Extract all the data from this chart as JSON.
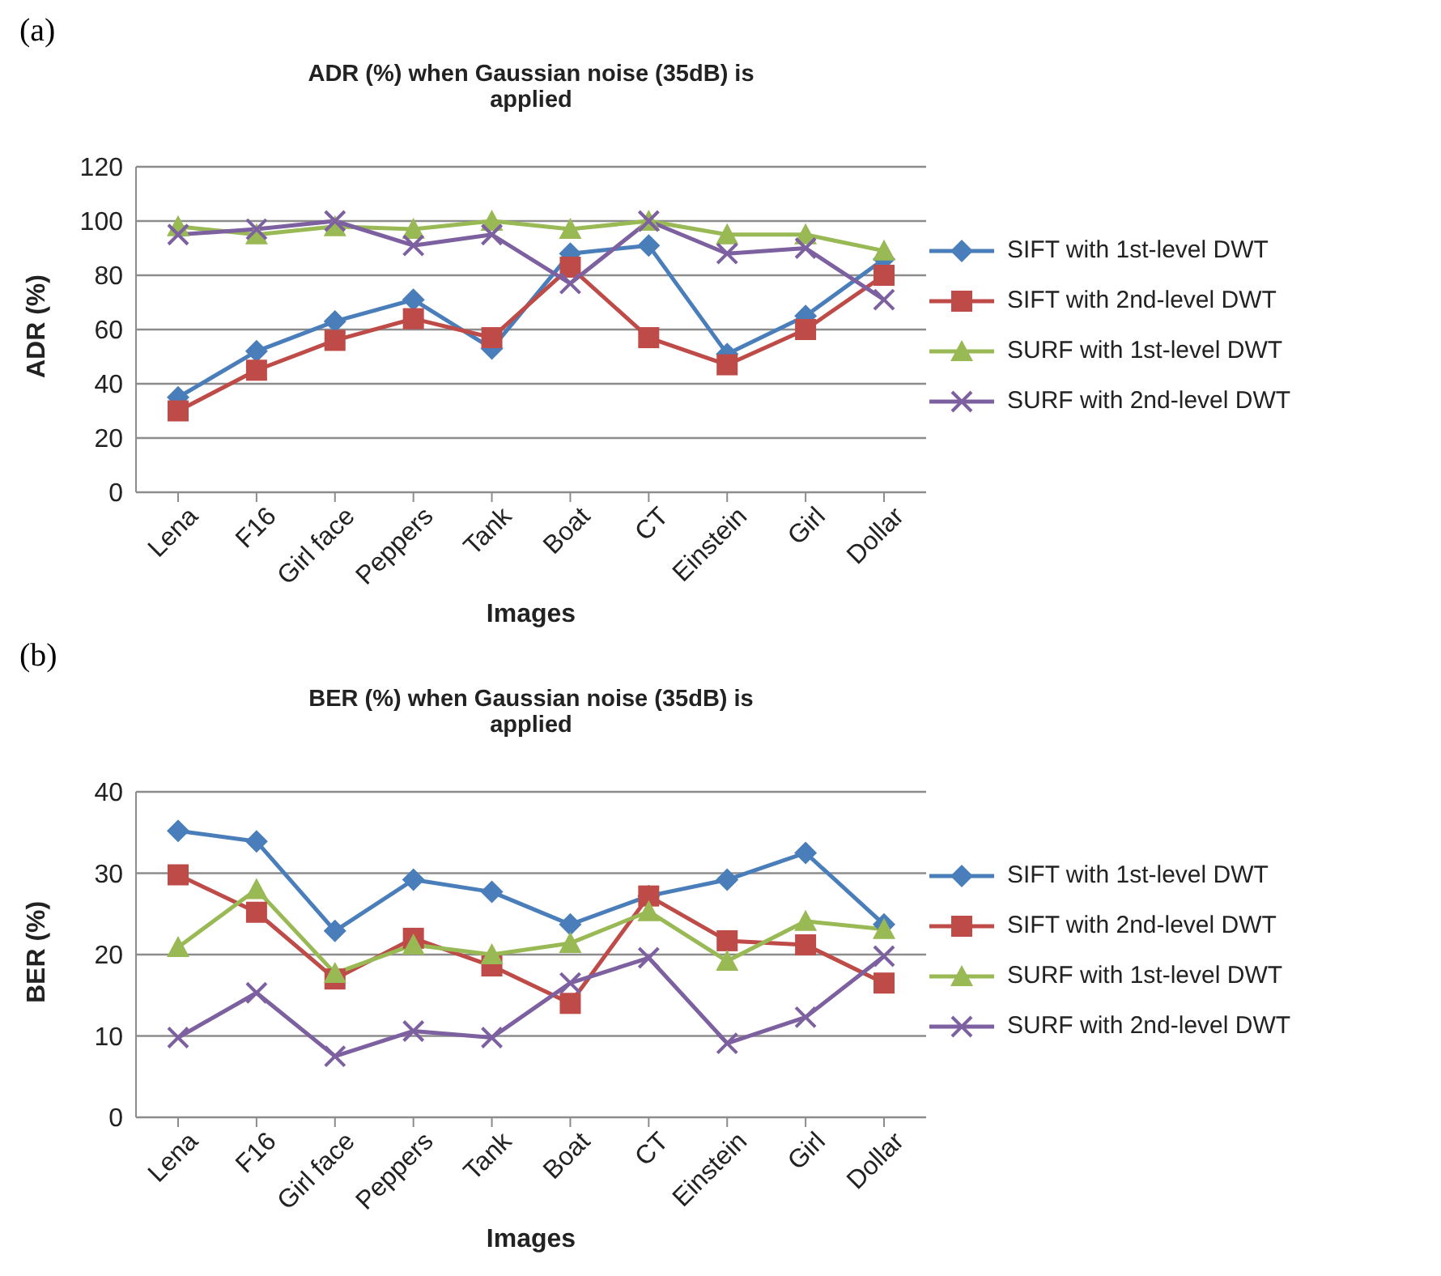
{
  "chart_data": [
    {
      "type": "line",
      "title": "ADR (%) when Gaussian noise (35dB) is applied",
      "xlabel": "Images",
      "ylabel": "ADR (%)",
      "annotations": [
        "(a)"
      ],
      "categories": [
        "Lena",
        "F16",
        "Girl face",
        "Peppers",
        "Tank",
        "Boat",
        "CT",
        "Einstein",
        "Girl",
        "Dollar"
      ],
      "ylim": [
        0,
        120
      ],
      "yticks": [
        0,
        20,
        40,
        60,
        80,
        100,
        120
      ],
      "grid": "y",
      "legend": "right",
      "series": [
        {
          "name": "SIFT with 1st-level DWT",
          "color": "#4a7ebb",
          "marker": "diamond",
          "values": [
            35,
            52,
            63,
            71,
            53,
            88,
            91,
            51,
            65,
            86
          ]
        },
        {
          "name": "SIFT with 2nd-level DWT",
          "color": "#be4b48",
          "marker": "square",
          "values": [
            30,
            45,
            56,
            64,
            57,
            83,
            57,
            47,
            60,
            80
          ]
        },
        {
          "name": "SURF with 1st-level DWT",
          "color": "#98b954",
          "marker": "triangle",
          "values": [
            98,
            95,
            98,
            97,
            100,
            97,
            100,
            95,
            95,
            89
          ]
        },
        {
          "name": "SURF with 2nd-level DWT",
          "color": "#7d60a0",
          "marker": "cross",
          "values": [
            95,
            97,
            100,
            91,
            95,
            77,
            100,
            88,
            90,
            71
          ]
        }
      ]
    },
    {
      "type": "line",
      "title": "BER (%) when Gaussian noise (35dB) is applied",
      "xlabel": "Images",
      "ylabel": "BER (%)",
      "annotations": [
        "(b)"
      ],
      "categories": [
        "Lena",
        "F16",
        "Girl face",
        "Peppers",
        "Tank",
        "Boat",
        "CT",
        "Einstein",
        "Girl",
        "Dollar"
      ],
      "ylim": [
        0,
        40
      ],
      "yticks": [
        0,
        10,
        20,
        30,
        40
      ],
      "grid": "y",
      "legend": "right",
      "series": [
        {
          "name": "SIFT with 1st-level DWT",
          "color": "#4a7ebb",
          "marker": "diamond",
          "values": [
            35.2,
            33.9,
            22.9,
            29.2,
            27.7,
            23.7,
            27.2,
            29.2,
            32.5,
            23.7
          ]
        },
        {
          "name": "SIFT with 2nd-level DWT",
          "color": "#be4b48",
          "marker": "square",
          "values": [
            29.8,
            25.2,
            17.0,
            22.0,
            18.6,
            14.0,
            27.2,
            21.7,
            21.2,
            16.5
          ]
        },
        {
          "name": "SURF with 1st-level DWT",
          "color": "#98b954",
          "marker": "triangle",
          "values": [
            20.9,
            28.0,
            17.7,
            21.2,
            20.0,
            21.4,
            25.3,
            19.2,
            24.1,
            23.1
          ]
        },
        {
          "name": "SURF with 2nd-level DWT",
          "color": "#7d60a0",
          "marker": "cross",
          "values": [
            9.8,
            15.3,
            7.5,
            10.6,
            9.8,
            16.5,
            19.6,
            9.1,
            12.3,
            19.8
          ]
        }
      ]
    }
  ]
}
